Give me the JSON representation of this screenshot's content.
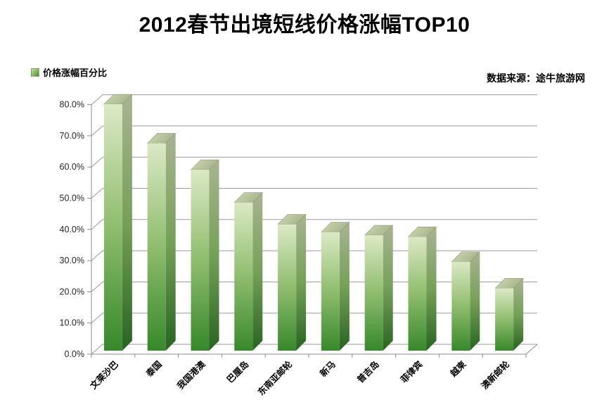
{
  "title": "2012春节出境短线价格涨幅TOP10",
  "legend": {
    "label": "价格涨幅百分比"
  },
  "source": "数据来源：途牛旅游网",
  "chart_data": {
    "type": "bar",
    "style": "3d-column",
    "title": "2012春节出境短线价格涨幅TOP10",
    "series_name": "价格涨幅百分比",
    "categories": [
      "文莱沙巴",
      "泰国",
      "我国港澳",
      "巴厘岛",
      "东南亚邮轮",
      "新马",
      "普吉岛",
      "菲律宾",
      "越柬",
      "澳新邮轮"
    ],
    "values": [
      79.0,
      66.5,
      58.0,
      47.5,
      40.5,
      38.0,
      37.0,
      36.5,
      28.5,
      20.0
    ],
    "value_unit": "%",
    "xlabel": "",
    "ylabel": "",
    "ylim": [
      0,
      80
    ],
    "ytick_step": 10,
    "ytick_labels": [
      "0.0%",
      "10.0%",
      "20.0%",
      "30.0%",
      "40.0%",
      "50.0%",
      "60.0%",
      "70.0%",
      "80.0%"
    ],
    "grid": true,
    "legend_position": "top-left",
    "source_note": "数据来源：途牛旅游网",
    "colors": {
      "bar_front_top": "#dce9c5",
      "bar_front_mid": "#8fbd6e",
      "bar_front_bottom": "#37882b",
      "bar_side_top": "#a9b492",
      "bar_side_mid": "#75a058",
      "bar_side_bottom": "#276420",
      "bar_top_face_light": "#cfd9b4",
      "bar_top_face_dark": "#a7b489",
      "gridline": "#9a9a9a",
      "axis": "#8c8c8c",
      "tick_label": "#262626",
      "category_label": "#000000"
    }
  }
}
